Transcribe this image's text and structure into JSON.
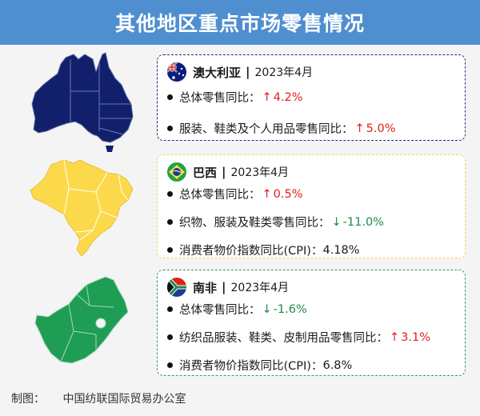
{
  "title": "其他地区重点市场零售情况",
  "colors": {
    "title_bg": "#4f8fd0",
    "australia": "#12206b",
    "brazil": "#fcd94a",
    "south_africa": "#1f9d55",
    "up": "#e0201a",
    "down": "#1f8a4c"
  },
  "cards": [
    {
      "country": "澳大利亚",
      "period": "2023年4月",
      "flag_icon": "australia-flag-icon",
      "items": [
        {
          "label": "总体零售同比：",
          "value": "4.2%",
          "trend": "up"
        },
        {
          "label": "服装、鞋类及个人用品零售同比：",
          "value": "5.0%",
          "trend": "up"
        }
      ]
    },
    {
      "country": "巴西",
      "period": "2023年4月",
      "flag_icon": "brazil-flag-icon",
      "items": [
        {
          "label": "总体零售同比：",
          "value": "0.5%",
          "trend": "up"
        },
        {
          "label": "织物、服装及鞋类零售同比：",
          "value": "-11.0%",
          "trend": "down"
        },
        {
          "label": "消费者物价指数同比(CPI)：",
          "value": "4.18%",
          "trend": "none"
        }
      ]
    },
    {
      "country": "南非",
      "period": "2023年4月",
      "flag_icon": "south-africa-flag-icon",
      "items": [
        {
          "label": "总体零售同比：",
          "value": "-1.6%",
          "trend": "down"
        },
        {
          "label": "纺织品服装、鞋类、皮制用品零售同比：",
          "value": "3.1%",
          "trend": "up"
        },
        {
          "label": "消费者物价指数同比(CPI)：",
          "value": "6.8%",
          "trend": "none"
        }
      ]
    }
  ],
  "footer": {
    "label": "制图：",
    "source": "中国纺联国际贸易办公室"
  },
  "separator": "|",
  "arrows": {
    "up": "↑",
    "down": "↓"
  }
}
